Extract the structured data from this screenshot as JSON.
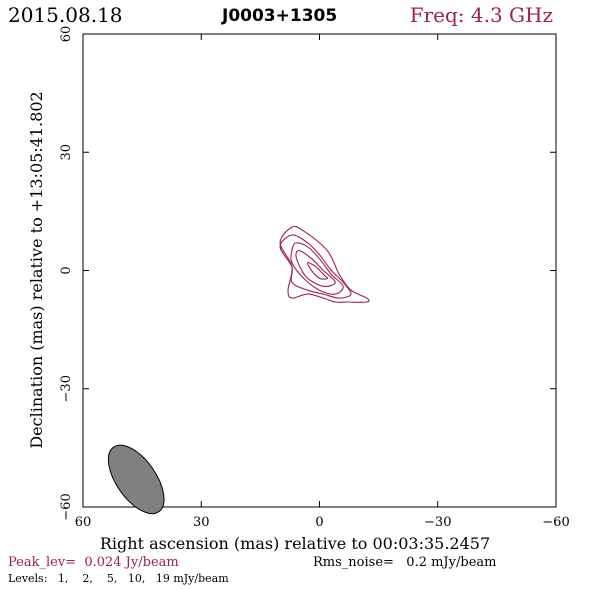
{
  "header": {
    "date": "2015.08.18",
    "source": "J0003+1305",
    "freq": "Freq: 4.3 GHz"
  },
  "footer": {
    "peak": "Peak_lev=  0.024 Jy/beam",
    "rms": "Rms_noise=   0.2 mJy/beam",
    "levels": "Levels:   1,    2,    5,   10,   19 mJy/beam"
  },
  "colors": {
    "accent": "#a0214a",
    "axis": "#000000",
    "beam_fill": "#808080"
  },
  "chart_data": {
    "type": "contour",
    "xlabel": "Right ascension (mas) relative to 00:03:35.2457",
    "ylabel": "Declination (mas) relative to +13:05:41.802",
    "xlim": [
      60,
      -60
    ],
    "ylim": [
      -60,
      60
    ],
    "xticks": [
      60,
      30,
      0,
      -30,
      -60
    ],
    "yticks": [
      -60,
      -30,
      0,
      30,
      60
    ],
    "xtick_labels": [
      "60",
      "30",
      "0",
      "−30",
      "−60"
    ],
    "ytick_labels": [
      "−60",
      "−30",
      "0",
      "30",
      "60"
    ],
    "contour_levels_mJy": [
      1,
      2,
      5,
      10,
      19
    ],
    "contours": [
      {
        "level": 1,
        "points": [
          [
            7,
            11
          ],
          [
            4,
            10
          ],
          [
            -2,
            5
          ],
          [
            -5,
            -1
          ],
          [
            -8,
            -5
          ],
          [
            -12,
            -7
          ],
          [
            -12,
            -8
          ],
          [
            -7,
            -8
          ],
          [
            -4,
            -8
          ],
          [
            -1,
            -7
          ],
          [
            3,
            -6
          ],
          [
            7,
            -7
          ],
          [
            8,
            -5
          ],
          [
            7,
            1
          ],
          [
            10,
            7
          ],
          [
            7,
            11
          ]
        ]
      },
      {
        "level": 2,
        "points": [
          [
            7,
            9
          ],
          [
            3,
            7
          ],
          [
            0,
            4
          ],
          [
            -3,
            0
          ],
          [
            -6,
            -3
          ],
          [
            -8,
            -6
          ],
          [
            -5,
            -7
          ],
          [
            -1,
            -6
          ],
          [
            3,
            -5
          ],
          [
            7,
            -3
          ],
          [
            7,
            1
          ],
          [
            10,
            6
          ],
          [
            7,
            9
          ]
        ]
      },
      {
        "level": 5,
        "points": [
          [
            6,
            7
          ],
          [
            3,
            6
          ],
          [
            0,
            3
          ],
          [
            -3,
            -1
          ],
          [
            -6,
            -4
          ],
          [
            -4,
            -6
          ],
          [
            0,
            -5
          ],
          [
            4,
            -2
          ],
          [
            7,
            2
          ],
          [
            7,
            5
          ],
          [
            6,
            7
          ]
        ]
      },
      {
        "level": 10,
        "points": [
          [
            5,
            5
          ],
          [
            2,
            3
          ],
          [
            -1,
            0
          ],
          [
            -4,
            -3
          ],
          [
            -1,
            -4
          ],
          [
            3,
            -2
          ],
          [
            5,
            1
          ],
          [
            6,
            4
          ],
          [
            5,
            5
          ]
        ]
      },
      {
        "level": 19,
        "points": [
          [
            3,
            2
          ],
          [
            1,
            1
          ],
          [
            -1,
            -1
          ],
          [
            -2,
            -2
          ],
          [
            0,
            -2
          ],
          [
            2,
            0
          ],
          [
            3,
            2
          ]
        ]
      }
    ],
    "beam": {
      "ra": 46.5,
      "dec": -53,
      "major": 10,
      "minor": 5,
      "pa_deg": -35
    }
  }
}
